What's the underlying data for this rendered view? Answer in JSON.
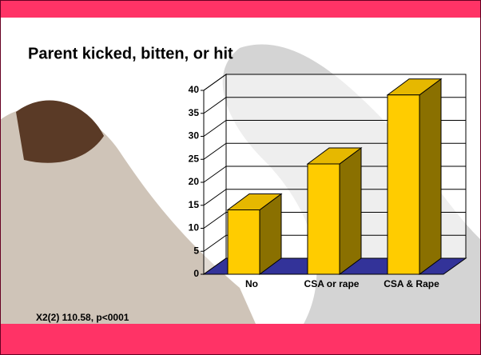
{
  "chart_data": {
    "type": "bar3d",
    "title": "Parent kicked, bitten, or hit",
    "categories": [
      "No",
      "CSA or rape",
      "CSA & Rape"
    ],
    "values": [
      14,
      24,
      39
    ],
    "color": "#ffcc00",
    "ylim": [
      0,
      40
    ],
    "yticks": [
      0,
      5,
      10,
      15,
      20,
      25,
      30,
      35,
      40
    ],
    "grid": true,
    "annotation": "X2(2) 110.58, p<0001"
  }
}
